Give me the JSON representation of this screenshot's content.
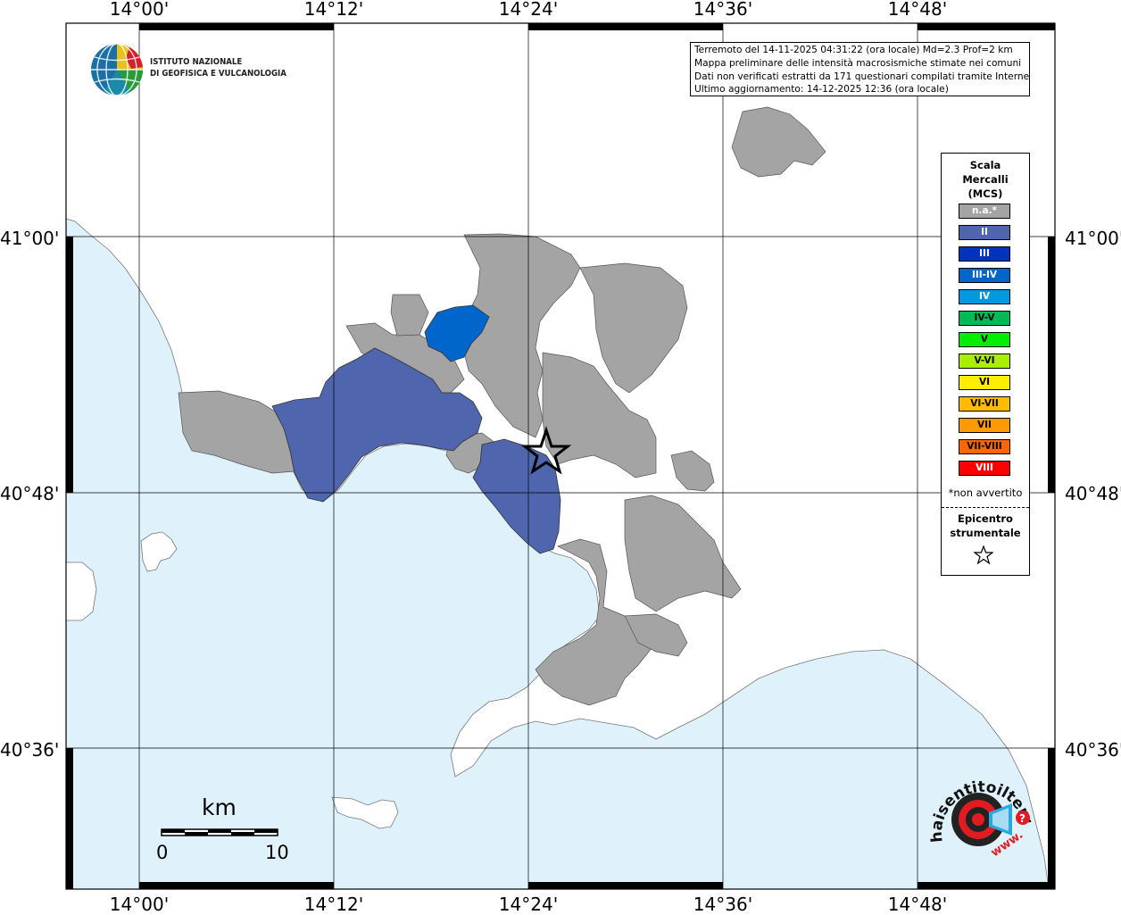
{
  "map": {
    "longitude_labels": [
      "14°00'",
      "14°12'",
      "14°24'",
      "14°36'",
      "14°48'"
    ],
    "latitude_labels": [
      "41°00'",
      "40°48'",
      "40°36'"
    ],
    "colors": {
      "sea": "#dff2fc",
      "land": "#ffffff",
      "not_felt": "#a4a4a4",
      "intensity_II": "#4f65ad",
      "intensity_III_IV": "#0066cc",
      "grid": "#000000"
    }
  },
  "logos": {
    "ingv": {
      "line1": "ISTITUTO NAZIONALE",
      "line2": "DI GEOFISICA E VULCANOLOGIA"
    },
    "hsit": {
      "text": "haisentitoilterremoto.it",
      "prefix": "www."
    }
  },
  "info": {
    "lines": [
      "Terremoto del 14-11-2025 04:31:22 (ora locale) Md=2.3 Prof=2 km",
      "Mappa preliminare delle intensità macrosismiche stimate nei comuni",
      "Dati non verificati estratti da 171 questionari compilati tramite Internet.",
      "Ultimo aggiornamento: 14-12-2025 12:36 (ora locale)"
    ]
  },
  "legend": {
    "title_lines": [
      "Scala",
      "Mercalli",
      "(MCS)"
    ],
    "items": [
      {
        "label": "n.a.*",
        "color": "#a4a4a4",
        "text_color": "#ffffff"
      },
      {
        "label": "II",
        "color": "#4f65ad",
        "text_color": "#ffffff"
      },
      {
        "label": "III",
        "color": "#0033bb",
        "text_color": "#ffffff"
      },
      {
        "label": "III-IV",
        "color": "#0066cc",
        "text_color": "#ffffff"
      },
      {
        "label": "IV",
        "color": "#0099e0",
        "text_color": "#ffffff"
      },
      {
        "label": "IV-V",
        "color": "#00bb55",
        "text_color": "#000000"
      },
      {
        "label": "V",
        "color": "#00ee00",
        "text_color": "#000000"
      },
      {
        "label": "V-VI",
        "color": "#aaee00",
        "text_color": "#000000"
      },
      {
        "label": "VI",
        "color": "#ffee00",
        "text_color": "#000000"
      },
      {
        "label": "VI-VII",
        "color": "#ffbb00",
        "text_color": "#000000"
      },
      {
        "label": "VII",
        "color": "#ff9900",
        "text_color": "#000000"
      },
      {
        "label": "VII-VIII",
        "color": "#ff6600",
        "text_color": "#000000"
      },
      {
        "label": "VIII",
        "color": "#ff0000",
        "text_color": "#ffffff"
      }
    ],
    "note": "*non avvertito",
    "epicenter_lines": [
      "Epicentro",
      "strumentale"
    ]
  },
  "scalebar": {
    "unit": "km",
    "min": "0",
    "max": "10"
  }
}
